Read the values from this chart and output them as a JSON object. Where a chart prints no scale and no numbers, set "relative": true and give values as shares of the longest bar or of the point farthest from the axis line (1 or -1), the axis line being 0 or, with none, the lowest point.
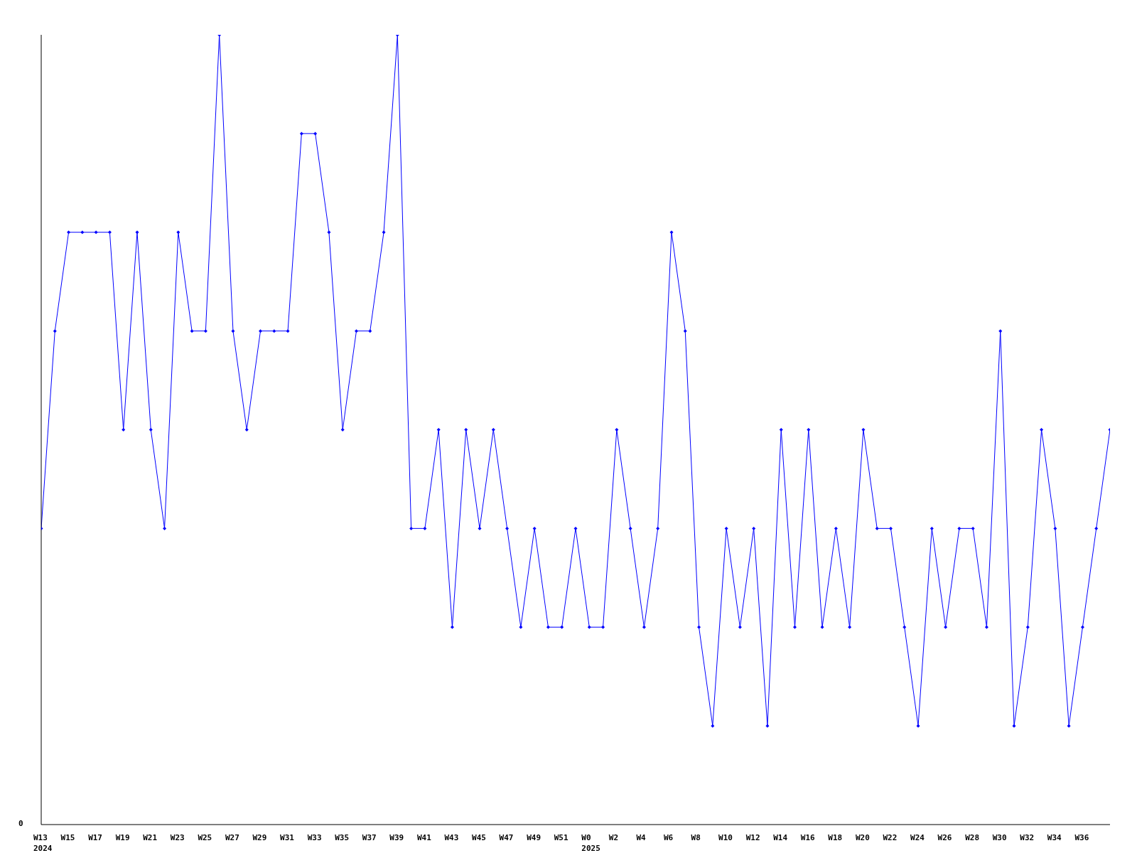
{
  "chart_data": {
    "type": "line",
    "relative": true,
    "marker": "diamond",
    "line_style": "solid",
    "grid": false,
    "legend": false,
    "annotations": [
      "0"
    ],
    "categories": [
      "W13\n2024",
      null,
      "W15",
      null,
      "W17",
      null,
      "W19",
      null,
      "W21",
      null,
      "W23",
      null,
      "W25",
      null,
      "W27",
      null,
      "W29",
      null,
      "W31",
      null,
      "W33",
      null,
      "W35",
      null,
      "W37",
      null,
      "W39",
      null,
      "W41",
      null,
      "W43",
      null,
      "W45",
      null,
      "W47",
      null,
      "W49",
      null,
      "W51",
      null,
      "W0\n2025",
      null,
      "W2",
      null,
      "W4",
      null,
      "W6",
      null,
      "W8",
      null,
      "W10",
      null,
      "W12",
      null,
      "W14",
      null,
      "W16",
      null,
      "W18",
      null,
      "W20",
      null,
      "W22",
      null,
      "W24",
      null,
      "W26",
      null,
      "W28",
      null,
      "W30",
      null,
      "W32",
      null,
      "W34",
      null,
      "W36",
      null,
      null
    ],
    "series": [
      {
        "color": "#0000ff",
        "values": [
          0.375,
          0.625,
          0.75,
          0.75,
          0.75,
          0.75,
          0.5,
          0.75,
          0.5,
          0.375,
          0.75,
          0.625,
          0.625,
          1,
          0.625,
          0.5,
          0.625,
          0.625,
          0.625,
          0.875,
          0.875,
          0.75,
          0.5,
          0.625,
          0.625,
          0.75,
          1,
          0.375,
          0.375,
          0.5,
          0.25,
          0.5,
          0.375,
          0.5,
          0.375,
          0.25,
          0.375,
          0.25,
          0.25,
          0.375,
          0.25,
          0.25,
          0.5,
          0.375,
          0.25,
          0.375,
          0.75,
          0.625,
          0.25,
          0.125,
          0.375,
          0.25,
          0.375,
          0.125,
          0.5,
          0.25,
          0.5,
          0.25,
          0.375,
          0.25,
          0.5,
          0.375,
          0.375,
          0.25,
          0.125,
          0.375,
          0.25,
          0.375,
          0.375,
          0.25,
          0.625,
          0.125,
          0.25,
          0.5,
          0.375,
          0.125,
          0.25,
          0.375,
          0.5
        ]
      }
    ]
  }
}
